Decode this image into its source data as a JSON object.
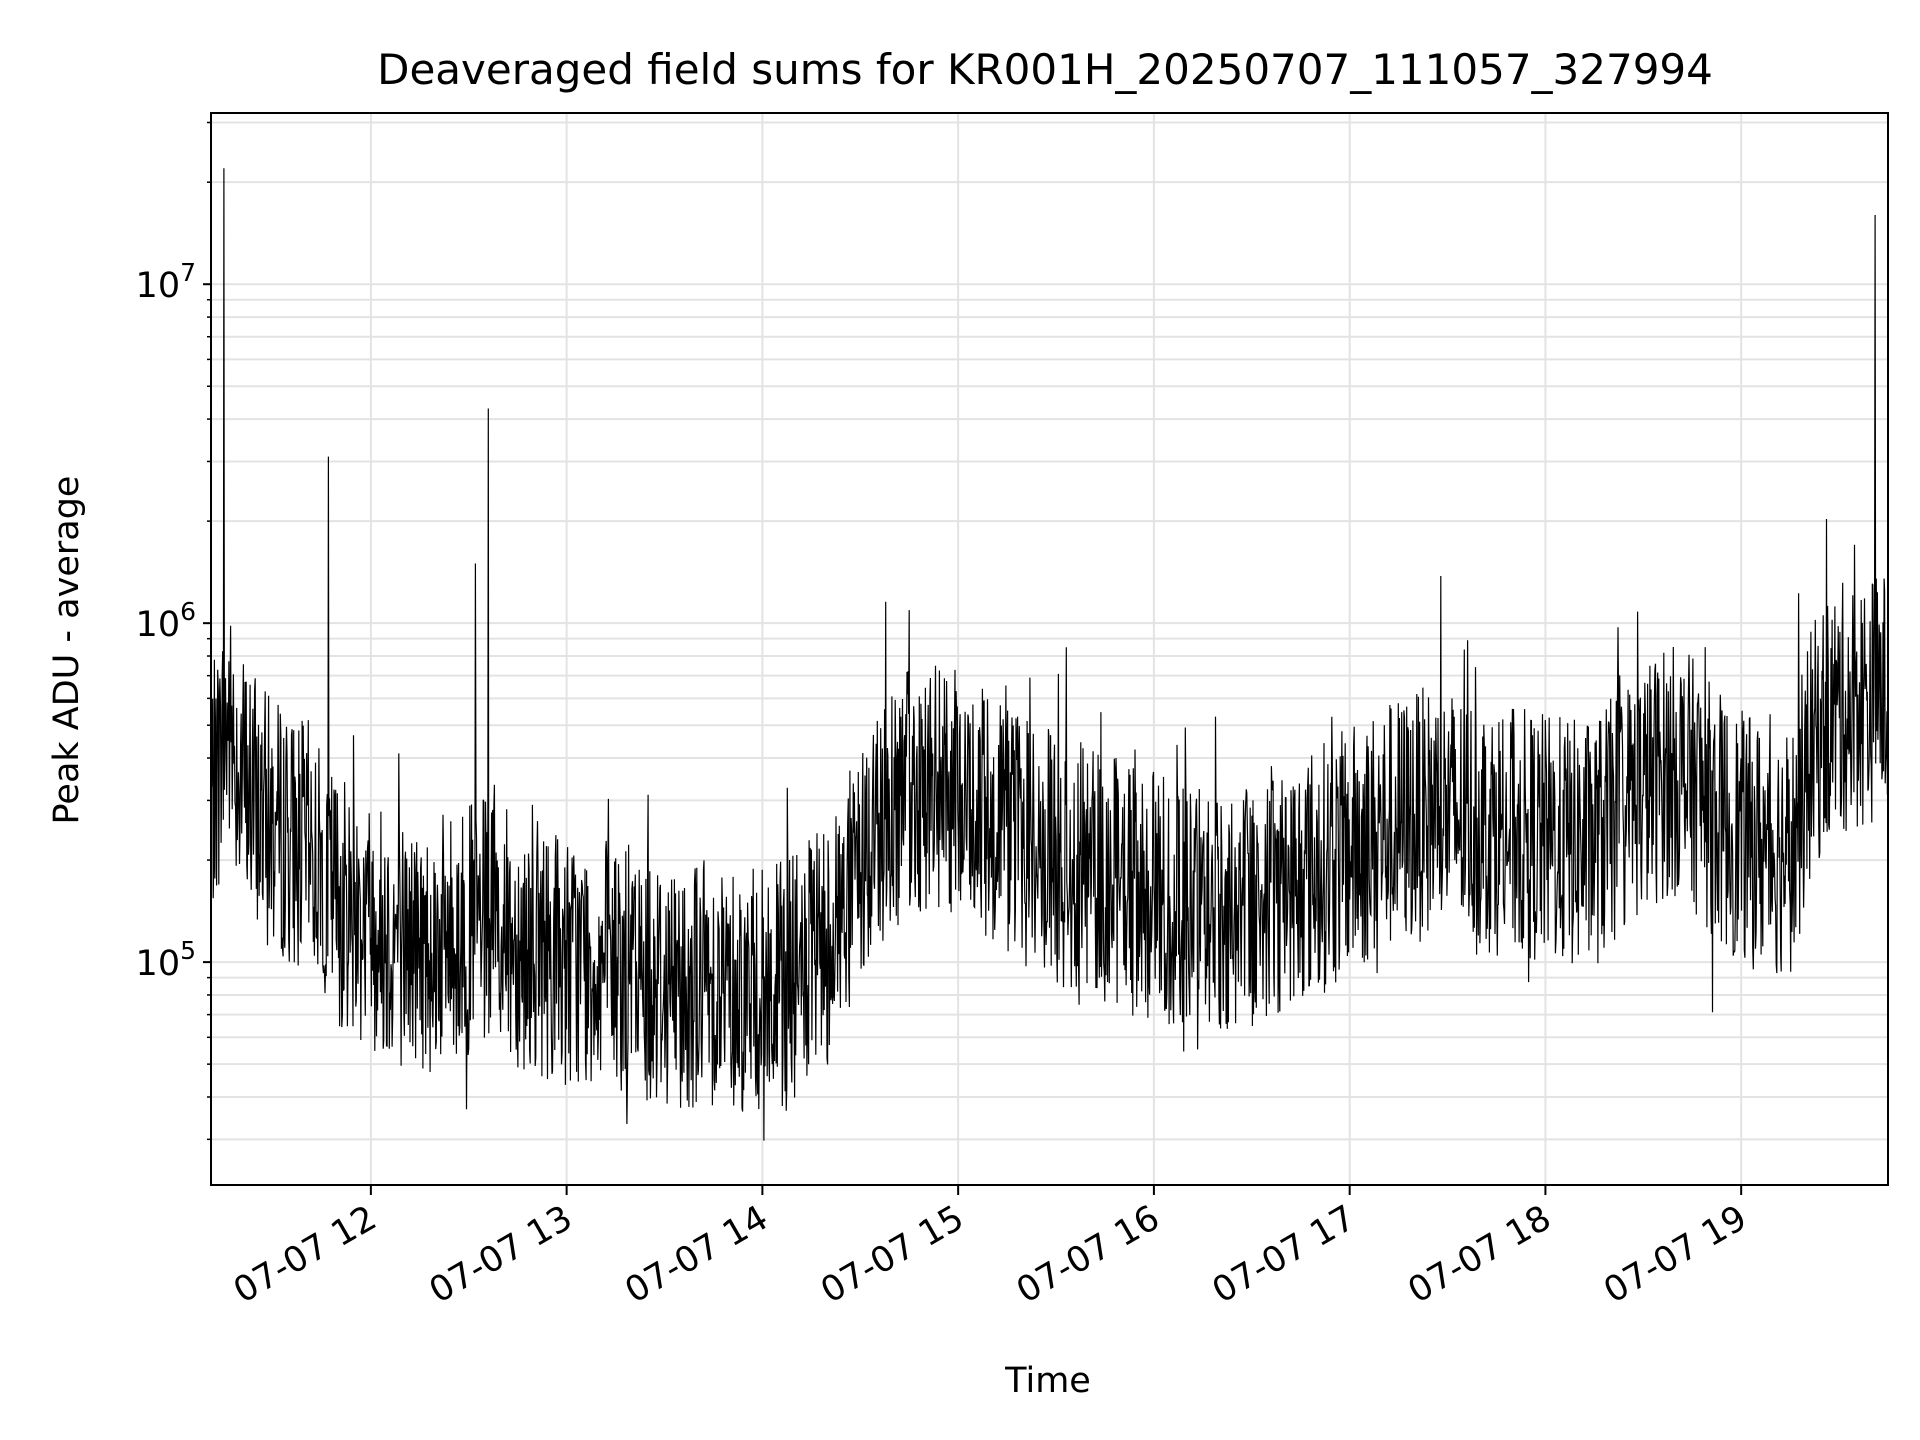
{
  "chart_data": {
    "type": "line",
    "title": "Deaveraged field sums for KR001H_20250707_111057_327994",
    "xlabel": "Time",
    "ylabel": "Peak ADU - average",
    "x_tick_labels": [
      "07-07 12",
      "07-07 13",
      "07-07 14",
      "07-07 15",
      "07-07 16",
      "07-07 17",
      "07-07 18",
      "07-07 19"
    ],
    "y_tick_labels": [
      {
        "base": "10",
        "exp": "5",
        "value": 100000
      },
      {
        "base": "10",
        "exp": "6",
        "value": 1000000
      },
      {
        "base": "10",
        "exp": "7",
        "value": 10000000
      }
    ],
    "yscale": "log",
    "ylim": [
      22000,
      32000000
    ],
    "xlim": [
      "2025-07-07 11:11",
      "2025-07-07 19:45"
    ],
    "grid": true,
    "line_color": "#000000",
    "series": [
      {
        "values_note_excluded": false,
        "x": [
          "2025-07-07 11:11",
          "2025-07-07 11:16",
          "2025-07-07 11:21",
          "2025-07-07 11:26",
          "2025-07-07 11:31",
          "2025-07-07 11:36",
          "2025-07-07 11:41",
          "2025-07-07 11:46",
          "2025-07-07 11:51",
          "2025-07-07 11:56",
          "2025-07-07 12:01",
          "2025-07-07 12:06",
          "2025-07-07 12:11",
          "2025-07-07 12:16",
          "2025-07-07 12:21",
          "2025-07-07 12:26",
          "2025-07-07 12:31",
          "2025-07-07 12:36",
          "2025-07-07 12:41",
          "2025-07-07 12:46",
          "2025-07-07 12:51",
          "2025-07-07 12:56",
          "2025-07-07 13:01",
          "2025-07-07 13:06",
          "2025-07-07 13:11",
          "2025-07-07 13:16",
          "2025-07-07 13:21",
          "2025-07-07 13:26",
          "2025-07-07 13:31",
          "2025-07-07 13:36",
          "2025-07-07 13:41",
          "2025-07-07 13:46",
          "2025-07-07 13:51",
          "2025-07-07 13:56",
          "2025-07-07 14:01",
          "2025-07-07 14:06",
          "2025-07-07 14:11",
          "2025-07-07 14:16",
          "2025-07-07 14:21",
          "2025-07-07 14:26",
          "2025-07-07 14:31",
          "2025-07-07 14:36",
          "2025-07-07 14:41",
          "2025-07-07 14:46",
          "2025-07-07 14:51",
          "2025-07-07 14:56",
          "2025-07-07 15:01",
          "2025-07-07 15:06",
          "2025-07-07 15:11",
          "2025-07-07 15:16",
          "2025-07-07 15:21",
          "2025-07-07 15:26",
          "2025-07-07 15:31",
          "2025-07-07 15:36",
          "2025-07-07 15:41",
          "2025-07-07 15:46",
          "2025-07-07 15:51",
          "2025-07-07 15:56",
          "2025-07-07 16:01",
          "2025-07-07 16:06",
          "2025-07-07 16:11",
          "2025-07-07 16:16",
          "2025-07-07 16:21",
          "2025-07-07 16:26",
          "2025-07-07 16:31",
          "2025-07-07 16:36",
          "2025-07-07 16:41",
          "2025-07-07 16:46",
          "2025-07-07 16:51",
          "2025-07-07 16:56",
          "2025-07-07 17:01",
          "2025-07-07 17:06",
          "2025-07-07 17:11",
          "2025-07-07 17:16",
          "2025-07-07 17:21",
          "2025-07-07 17:26",
          "2025-07-07 17:31",
          "2025-07-07 17:36",
          "2025-07-07 17:41",
          "2025-07-07 17:46",
          "2025-07-07 17:51",
          "2025-07-07 17:56",
          "2025-07-07 18:01",
          "2025-07-07 18:06",
          "2025-07-07 18:11",
          "2025-07-07 18:16",
          "2025-07-07 18:21",
          "2025-07-07 18:26",
          "2025-07-07 18:31",
          "2025-07-07 18:36",
          "2025-07-07 18:41",
          "2025-07-07 18:46",
          "2025-07-07 18:51",
          "2025-07-07 18:56",
          "2025-07-07 19:01",
          "2025-07-07 19:06",
          "2025-07-07 19:11",
          "2025-07-07 19:16",
          "2025-07-07 19:21",
          "2025-07-07 19:26",
          "2025-07-07 19:31",
          "2025-07-07 19:36",
          "2025-07-07 19:41",
          "2025-07-07 19:45"
        ],
        "y": [
          300000,
          500000,
          350000,
          280000,
          250000,
          230000,
          220000,
          180000,
          150000,
          140000,
          130000,
          120000,
          115000,
          110000,
          115000,
          120000,
          125000,
          130000,
          120000,
          115000,
          110000,
          105000,
          100000,
          100000,
          98000,
          95000,
          93000,
          90000,
          88000,
          87000,
          88000,
          90000,
          85000,
          82000,
          80000,
          85000,
          90000,
          100000,
          120000,
          150000,
          200000,
          260000,
          300000,
          320000,
          330000,
          320000,
          300000,
          280000,
          260000,
          240000,
          230000,
          210000,
          200000,
          190000,
          185000,
          180000,
          170000,
          160000,
          155000,
          150000,
          145000,
          140000,
          140000,
          145000,
          150000,
          160000,
          170000,
          180000,
          190000,
          200000,
          215000,
          230000,
          250000,
          260000,
          270000,
          280000,
          275000,
          265000,
          255000,
          245000,
          240000,
          235000,
          230000,
          225000,
          220000,
          230000,
          260000,
          300000,
          330000,
          360000,
          370000,
          330000,
          280000,
          250000,
          230000,
          220000,
          215000,
          220000,
          400000,
          520000,
          560000,
          580000,
          600000,
          620000
        ],
        "spikes": [
          {
            "x": "2025-07-07 11:15",
            "y": 22000000
          },
          {
            "x": "2025-07-07 11:47",
            "y": 3100000
          },
          {
            "x": "2025-07-07 12:32",
            "y": 1500000
          },
          {
            "x": "2025-07-07 12:36",
            "y": 4300000
          },
          {
            "x": "2025-07-07 19:41",
            "y": 16000000
          }
        ]
      }
    ]
  }
}
